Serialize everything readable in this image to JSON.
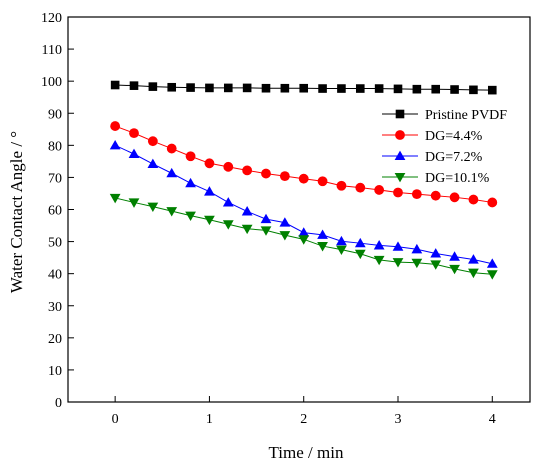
{
  "chart_data": {
    "type": "line",
    "title": "",
    "xlabel": "Time / min",
    "ylabel": "Water Contact Angle / °",
    "xlim": [
      -0.5,
      4.4
    ],
    "ylim": [
      0,
      120
    ],
    "x_ticks": [
      0,
      1,
      2,
      3,
      4
    ],
    "y_ticks": [
      0,
      10,
      20,
      30,
      40,
      50,
      60,
      70,
      80,
      90,
      100,
      110,
      120
    ],
    "grid": false,
    "legend_position": "right",
    "x": [
      0,
      0.2,
      0.4,
      0.6,
      0.8,
      1.0,
      1.2,
      1.4,
      1.6,
      1.8,
      2.0,
      2.2,
      2.4,
      2.6,
      2.8,
      3.0,
      3.2,
      3.4,
      3.6,
      3.8,
      4.0
    ],
    "series": [
      {
        "name": "Pristine PVDF",
        "marker": "square",
        "color": "#000000",
        "values": [
          98.8,
          98.6,
          98.3,
          98.1,
          98.0,
          97.9,
          97.9,
          97.9,
          97.8,
          97.8,
          97.8,
          97.7,
          97.7,
          97.7,
          97.7,
          97.6,
          97.5,
          97.5,
          97.4,
          97.3,
          97.2
        ]
      },
      {
        "name": "DG=4.4%",
        "marker": "circle",
        "color": "#ff0000",
        "values": [
          86.0,
          83.8,
          81.3,
          79.0,
          76.6,
          74.4,
          73.3,
          72.2,
          71.2,
          70.4,
          69.6,
          68.8,
          67.4,
          66.8,
          66.1,
          65.3,
          64.8,
          64.3,
          63.8,
          63.1,
          62.2
        ]
      },
      {
        "name": "DG=7.2%",
        "marker": "triangle-up",
        "color": "#0000ff",
        "values": [
          80.0,
          77.3,
          74.2,
          71.3,
          68.2,
          65.6,
          62.2,
          59.4,
          57.0,
          55.9,
          52.8,
          52.1,
          50.1,
          49.5,
          48.8,
          48.4,
          47.6,
          46.3,
          45.3,
          44.4,
          43.1
        ]
      },
      {
        "name": "DG=10.1%",
        "marker": "triangle-down",
        "color": "#008000",
        "values": [
          63.6,
          62.2,
          60.9,
          59.5,
          58.1,
          56.8,
          55.4,
          54.0,
          53.5,
          52.0,
          50.7,
          48.6,
          47.5,
          46.2,
          44.3,
          43.6,
          43.4,
          42.9,
          41.5,
          40.3,
          39.8
        ]
      }
    ]
  }
}
